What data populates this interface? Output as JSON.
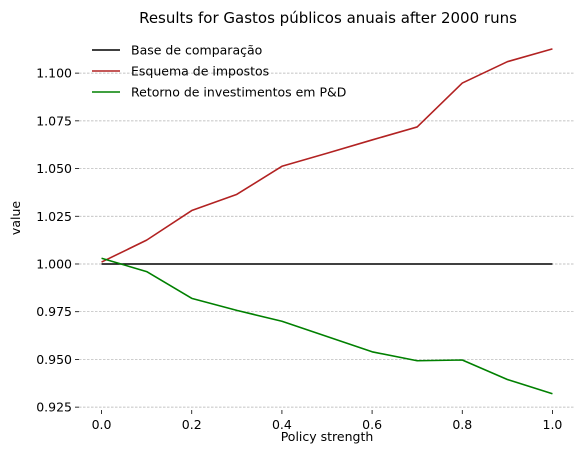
{
  "chart_data": {
    "type": "line",
    "title": "Results for Gastos públicos anuais after 2000 runs",
    "xlabel": "Policy strength",
    "ylabel": "value",
    "xlim": [
      -0.05,
      1.05
    ],
    "ylim": [
      0.9235,
      1.1205
    ],
    "x": [
      0.0,
      0.1,
      0.2,
      0.3,
      0.4,
      0.5,
      0.6,
      0.7,
      0.8,
      0.9,
      1.0
    ],
    "x_ticks": [
      0.0,
      0.2,
      0.4,
      0.6,
      0.8,
      1.0
    ],
    "x_tick_labels": [
      "0.0",
      "0.2",
      "0.4",
      "0.6",
      "0.8",
      "1.0"
    ],
    "y_ticks": [
      0.925,
      0.95,
      0.975,
      1.0,
      1.025,
      1.05,
      1.075,
      1.1
    ],
    "y_tick_labels": [
      "0.925",
      "0.950",
      "0.975",
      "1.000",
      "1.025",
      "1.050",
      "1.075",
      "1.100"
    ],
    "grid": "horizontal dashed",
    "legend_position": "top-left",
    "series": [
      {
        "name": "Base de comparação",
        "color": "#000000",
        "values": [
          1.0,
          1.0,
          1.0,
          1.0,
          1.0,
          1.0,
          1.0,
          1.0,
          1.0,
          1.0,
          1.0
        ]
      },
      {
        "name": "Esquema de impostos",
        "color": "#b22222",
        "values": [
          1.001,
          1.0125,
          1.028,
          1.0365,
          1.0512,
          1.058,
          1.065,
          1.0718,
          1.0948,
          1.106,
          1.1127
        ]
      },
      {
        "name": "Retorno de investimentos em P&D",
        "color": "#008000",
        "values": [
          1.003,
          0.996,
          0.982,
          0.9757,
          0.97,
          0.962,
          0.954,
          0.9493,
          0.9497,
          0.9395,
          0.932
        ]
      }
    ]
  }
}
